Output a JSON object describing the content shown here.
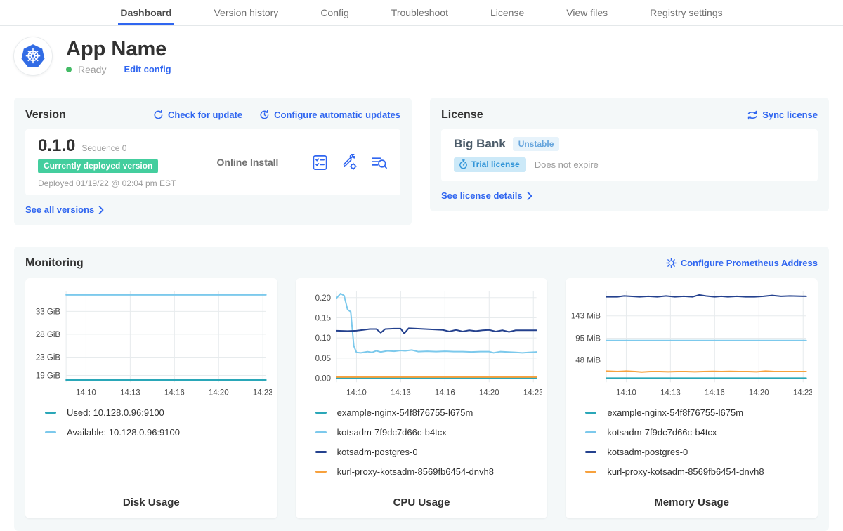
{
  "nav": {
    "tabs": [
      "Dashboard",
      "Version history",
      "Config",
      "Troubleshoot",
      "License",
      "View files",
      "Registry settings"
    ],
    "active": "Dashboard"
  },
  "header": {
    "app_name": "App Name",
    "status": "Ready",
    "edit_config_label": "Edit config"
  },
  "version_card": {
    "title": "Version",
    "check_update_label": "Check for update",
    "auto_updates_label": "Configure automatic updates",
    "version_number": "0.1.0",
    "sequence": "Sequence 0",
    "deployed_badge": "Currently deployed version",
    "deployed_at": "Deployed 01/19/22 @ 02:04 pm EST",
    "install_type": "Online Install",
    "see_all_label": "See all versions"
  },
  "license_card": {
    "title": "License",
    "sync_label": "Sync license",
    "customer_name": "Big Bank",
    "channel": "Unstable",
    "license_type": "Trial license",
    "expiry": "Does not expire",
    "see_details_label": "See license details"
  },
  "monitoring": {
    "title": "Monitoring",
    "configure_label": "Configure Prometheus Address"
  },
  "colors": {
    "accent_blue": "#3066f0",
    "badge_green": "#44ce9e",
    "ready_green": "#44bb66",
    "kubernetes_blue": "#326ce5",
    "grid": "#e7ebed",
    "tick_text": "#4a4a4a"
  },
  "chart_data": [
    {
      "type": "line",
      "title": "Disk Usage",
      "xlim": [
        -0.45,
        4.07
      ],
      "ylim": [
        17.5,
        37.5
      ],
      "x_ticks": [
        {
          "label": "14:10",
          "pos": 0
        },
        {
          "label": "14:13",
          "pos": 1
        },
        {
          "label": "14:16",
          "pos": 2
        },
        {
          "label": "14:20",
          "pos": 3
        },
        {
          "label": "14:23",
          "pos": 4
        }
      ],
      "y_ticks": [
        {
          "label": "19 GiB",
          "pos": 19
        },
        {
          "label": "23 GiB",
          "pos": 23
        },
        {
          "label": "28 GiB",
          "pos": 28
        },
        {
          "label": "33 GiB",
          "pos": 33
        }
      ],
      "series": [
        {
          "name": "Used: 10.128.0.96:9100",
          "color": "#2aa7b8",
          "points": [
            [
              -0.45,
              18.0
            ],
            [
              4.07,
              18.0
            ]
          ]
        },
        {
          "name": "Available: 10.128.0.96:9100",
          "color": "#7cc9ec",
          "points": [
            [
              -0.45,
              36.6
            ],
            [
              4.07,
              36.6
            ]
          ]
        }
      ]
    },
    {
      "type": "line",
      "title": "CPU Usage",
      "xlim": [
        -0.45,
        4.07
      ],
      "ylim": [
        -0.01,
        0.217
      ],
      "x_ticks": [
        {
          "label": "14:10",
          "pos": 0
        },
        {
          "label": "14:13",
          "pos": 1
        },
        {
          "label": "14:16",
          "pos": 2
        },
        {
          "label": "14:20",
          "pos": 3
        },
        {
          "label": "14:23",
          "pos": 4
        }
      ],
      "y_ticks": [
        {
          "label": "0.00",
          "pos": 0
        },
        {
          "label": "0.05",
          "pos": 0.05
        },
        {
          "label": "0.10",
          "pos": 0.1
        },
        {
          "label": "0.15",
          "pos": 0.15
        },
        {
          "label": "0.20",
          "pos": 0.2
        }
      ],
      "series": [
        {
          "name": "example-nginx-54f8f76755-l675m",
          "color": "#2aa7b8",
          "points": [
            [
              -0.45,
              0.001
            ],
            [
              4.07,
              0.001
            ]
          ]
        },
        {
          "name": "kotsadm-7f9dc7d66c-b4tcx",
          "color": "#7cc9ec",
          "points": [
            [
              -0.45,
              0.199
            ],
            [
              -0.36,
              0.21
            ],
            [
              -0.28,
              0.205
            ],
            [
              -0.2,
              0.17
            ],
            [
              -0.13,
              0.165
            ],
            [
              -0.06,
              0.08
            ],
            [
              0,
              0.064
            ],
            [
              0.1,
              0.063
            ],
            [
              0.25,
              0.066
            ],
            [
              0.35,
              0.064
            ],
            [
              0.45,
              0.068
            ],
            [
              0.55,
              0.065
            ],
            [
              0.7,
              0.068
            ],
            [
              0.85,
              0.067
            ],
            [
              1,
              0.069
            ],
            [
              1.1,
              0.068
            ],
            [
              1.25,
              0.07
            ],
            [
              1.4,
              0.066
            ],
            [
              1.6,
              0.067
            ],
            [
              1.8,
              0.066
            ],
            [
              2,
              0.067
            ],
            [
              2.2,
              0.066
            ],
            [
              2.4,
              0.066
            ],
            [
              2.6,
              0.065
            ],
            [
              2.8,
              0.066
            ],
            [
              3,
              0.066
            ],
            [
              3.1,
              0.063
            ],
            [
              3.25,
              0.066
            ],
            [
              3.4,
              0.065
            ],
            [
              3.6,
              0.064
            ],
            [
              3.75,
              0.063
            ],
            [
              3.9,
              0.064
            ],
            [
              4.07,
              0.065
            ]
          ]
        },
        {
          "name": "kotsadm-postgres-0",
          "color": "#24418e",
          "points": [
            [
              -0.45,
              0.118
            ],
            [
              -0.2,
              0.117
            ],
            [
              0,
              0.118
            ],
            [
              0.15,
              0.12
            ],
            [
              0.3,
              0.122
            ],
            [
              0.45,
              0.122
            ],
            [
              0.55,
              0.113
            ],
            [
              0.65,
              0.122
            ],
            [
              0.85,
              0.123
            ],
            [
              1,
              0.123
            ],
            [
              1.08,
              0.111
            ],
            [
              1.18,
              0.124
            ],
            [
              1.35,
              0.123
            ],
            [
              1.55,
              0.122
            ],
            [
              1.75,
              0.121
            ],
            [
              1.95,
              0.12
            ],
            [
              2.1,
              0.116
            ],
            [
              2.25,
              0.12
            ],
            [
              2.4,
              0.116
            ],
            [
              2.55,
              0.119
            ],
            [
              2.7,
              0.117
            ],
            [
              2.85,
              0.119
            ],
            [
              3,
              0.12
            ],
            [
              3.15,
              0.116
            ],
            [
              3.3,
              0.119
            ],
            [
              3.45,
              0.115
            ],
            [
              3.6,
              0.119
            ],
            [
              3.8,
              0.119
            ],
            [
              4.07,
              0.119
            ]
          ]
        },
        {
          "name": "kurl-proxy-kotsadm-8569fb6454-dnvh8",
          "color": "#f7a13d",
          "points": [
            [
              -0.45,
              0.003
            ],
            [
              4.07,
              0.003
            ]
          ]
        }
      ]
    },
    {
      "type": "line",
      "title": "Memory Usage",
      "xlim": [
        -0.45,
        4.07
      ],
      "ylim": [
        0,
        197
      ],
      "x_ticks": [
        {
          "label": "14:10",
          "pos": 0
        },
        {
          "label": "14:13",
          "pos": 1
        },
        {
          "label": "14:16",
          "pos": 2
        },
        {
          "label": "14:20",
          "pos": 3
        },
        {
          "label": "14:23",
          "pos": 4
        }
      ],
      "y_ticks": [
        {
          "label": "48 MiB",
          "pos": 48
        },
        {
          "label": "95 MiB",
          "pos": 95
        },
        {
          "label": "143 MiB",
          "pos": 143
        }
      ],
      "series": [
        {
          "name": "example-nginx-54f8f76755-l675m",
          "color": "#2aa7b8",
          "points": [
            [
              -0.45,
              9
            ],
            [
              4.07,
              9
            ]
          ]
        },
        {
          "name": "kotsadm-7f9dc7d66c-b4tcx",
          "color": "#7cc9ec",
          "points": [
            [
              -0.45,
              90
            ],
            [
              4.07,
              90
            ]
          ]
        },
        {
          "name": "kotsadm-postgres-0",
          "color": "#24418e",
          "points": [
            [
              -0.45,
              184
            ],
            [
              -0.2,
              184
            ],
            [
              -0.05,
              186
            ],
            [
              0.1,
              185
            ],
            [
              0.3,
              184
            ],
            [
              0.5,
              185
            ],
            [
              0.7,
              184
            ],
            [
              0.9,
              186
            ],
            [
              1.1,
              184
            ],
            [
              1.3,
              185
            ],
            [
              1.5,
              184
            ],
            [
              1.65,
              188
            ],
            [
              1.8,
              186
            ],
            [
              2,
              184
            ],
            [
              2.15,
              185
            ],
            [
              2.3,
              184
            ],
            [
              2.5,
              185
            ],
            [
              2.7,
              184
            ],
            [
              2.9,
              184
            ],
            [
              3.1,
              185
            ],
            [
              3.3,
              187
            ],
            [
              3.5,
              185
            ],
            [
              3.7,
              186
            ],
            [
              4.07,
              185
            ]
          ]
        },
        {
          "name": "kurl-proxy-kotsadm-8569fb6454-dnvh8",
          "color": "#f7a13d",
          "points": [
            [
              -0.45,
              24
            ],
            [
              -0.2,
              23
            ],
            [
              0,
              24
            ],
            [
              0.2,
              23
            ],
            [
              0.35,
              22
            ],
            [
              0.55,
              23
            ],
            [
              0.75,
              23
            ],
            [
              0.95,
              22.5
            ],
            [
              1.15,
              23
            ],
            [
              1.35,
              23
            ],
            [
              1.55,
              22.5
            ],
            [
              1.75,
              23
            ],
            [
              1.95,
              23.5
            ],
            [
              2.15,
              23
            ],
            [
              2.35,
              23.5
            ],
            [
              2.55,
              23
            ],
            [
              2.75,
              23
            ],
            [
              2.95,
              22.5
            ],
            [
              3.15,
              24
            ],
            [
              3.35,
              23
            ],
            [
              3.6,
              23
            ],
            [
              4.07,
              23
            ]
          ]
        }
      ]
    }
  ]
}
